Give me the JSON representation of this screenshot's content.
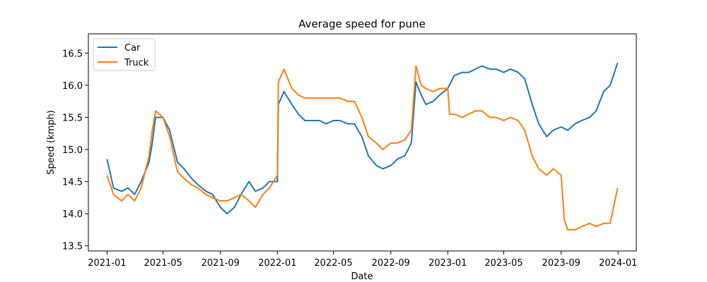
{
  "chart_data": {
    "type": "line",
    "title": "Average speed for pune",
    "xlabel": "Date",
    "ylabel": "Speed (kmph)",
    "x_ticks": [
      "2021-01",
      "2021-05",
      "2021-09",
      "2022-01",
      "2022-05",
      "2022-09",
      "2023-01",
      "2023-05",
      "2023-09",
      "2024-01"
    ],
    "y_ticks": [
      "13.5",
      "14.0",
      "14.5",
      "15.0",
      "15.5",
      "16.0",
      "16.5"
    ],
    "xlim": [
      "2020-11-22",
      "2024-02-09"
    ],
    "ylim": [
      13.42,
      16.8
    ],
    "grid": false,
    "legend_position": "top-left",
    "series": [
      {
        "name": "Car",
        "color": "#1f77b4",
        "points": [
          [
            "2021-01-01",
            14.85
          ],
          [
            "2021-01-15",
            14.4
          ],
          [
            "2021-02-01",
            14.35
          ],
          [
            "2021-02-15",
            14.4
          ],
          [
            "2021-03-01",
            14.3
          ],
          [
            "2021-03-15",
            14.5
          ],
          [
            "2021-04-01",
            14.8
          ],
          [
            "2021-04-08",
            15.1
          ],
          [
            "2021-04-15",
            15.5
          ],
          [
            "2021-05-01",
            15.5
          ],
          [
            "2021-05-15",
            15.3
          ],
          [
            "2021-06-01",
            14.8
          ],
          [
            "2021-06-15",
            14.7
          ],
          [
            "2021-07-01",
            14.55
          ],
          [
            "2021-07-15",
            14.45
          ],
          [
            "2021-08-01",
            14.35
          ],
          [
            "2021-08-15",
            14.3
          ],
          [
            "2021-09-01",
            14.1
          ],
          [
            "2021-09-15",
            14.0
          ],
          [
            "2021-10-01",
            14.1
          ],
          [
            "2021-10-15",
            14.3
          ],
          [
            "2021-11-01",
            14.5
          ],
          [
            "2021-11-15",
            14.35
          ],
          [
            "2021-12-01",
            14.4
          ],
          [
            "2021-12-15",
            14.5
          ],
          [
            "2022-01-01",
            14.5
          ],
          [
            "2022-01-03",
            15.7
          ],
          [
            "2022-01-15",
            15.9
          ],
          [
            "2022-02-01",
            15.7
          ],
          [
            "2022-02-15",
            15.55
          ],
          [
            "2022-03-01",
            15.45
          ],
          [
            "2022-03-15",
            15.45
          ],
          [
            "2022-04-01",
            15.45
          ],
          [
            "2022-04-15",
            15.4
          ],
          [
            "2022-05-01",
            15.45
          ],
          [
            "2022-05-15",
            15.45
          ],
          [
            "2022-06-01",
            15.4
          ],
          [
            "2022-06-15",
            15.4
          ],
          [
            "2022-07-01",
            15.2
          ],
          [
            "2022-07-15",
            14.9
          ],
          [
            "2022-08-01",
            14.75
          ],
          [
            "2022-08-15",
            14.7
          ],
          [
            "2022-09-01",
            14.75
          ],
          [
            "2022-09-15",
            14.85
          ],
          [
            "2022-10-01",
            14.9
          ],
          [
            "2022-10-15",
            15.1
          ],
          [
            "2022-10-25",
            16.05
          ],
          [
            "2022-11-05",
            15.85
          ],
          [
            "2022-11-15",
            15.7
          ],
          [
            "2022-12-01",
            15.75
          ],
          [
            "2022-12-15",
            15.85
          ],
          [
            "2023-01-01",
            15.95
          ],
          [
            "2023-01-15",
            16.15
          ],
          [
            "2023-02-01",
            16.2
          ],
          [
            "2023-02-15",
            16.2
          ],
          [
            "2023-03-01",
            16.25
          ],
          [
            "2023-03-15",
            16.3
          ],
          [
            "2023-04-01",
            16.25
          ],
          [
            "2023-04-15",
            16.25
          ],
          [
            "2023-05-01",
            16.2
          ],
          [
            "2023-05-15",
            16.25
          ],
          [
            "2023-06-01",
            16.2
          ],
          [
            "2023-06-15",
            16.1
          ],
          [
            "2023-07-01",
            15.7
          ],
          [
            "2023-07-15",
            15.4
          ],
          [
            "2023-08-01",
            15.2
          ],
          [
            "2023-08-15",
            15.3
          ],
          [
            "2023-09-01",
            15.35
          ],
          [
            "2023-09-15",
            15.3
          ],
          [
            "2023-10-01",
            15.4
          ],
          [
            "2023-10-15",
            15.45
          ],
          [
            "2023-11-01",
            15.5
          ],
          [
            "2023-11-15",
            15.6
          ],
          [
            "2023-12-01",
            15.9
          ],
          [
            "2023-12-15",
            16.0
          ],
          [
            "2023-12-31",
            16.35
          ]
        ]
      },
      {
        "name": "Truck",
        "color": "#ff7f0e",
        "points": [
          [
            "2021-01-01",
            14.6
          ],
          [
            "2021-01-15",
            14.3
          ],
          [
            "2021-02-01",
            14.2
          ],
          [
            "2021-02-15",
            14.3
          ],
          [
            "2021-03-01",
            14.2
          ],
          [
            "2021-03-15",
            14.4
          ],
          [
            "2021-04-01",
            14.9
          ],
          [
            "2021-04-08",
            15.3
          ],
          [
            "2021-04-15",
            15.6
          ],
          [
            "2021-05-01",
            15.5
          ],
          [
            "2021-05-15",
            15.2
          ],
          [
            "2021-06-01",
            14.65
          ],
          [
            "2021-06-15",
            14.55
          ],
          [
            "2021-07-01",
            14.45
          ],
          [
            "2021-07-15",
            14.4
          ],
          [
            "2021-08-01",
            14.3
          ],
          [
            "2021-08-15",
            14.25
          ],
          [
            "2021-09-01",
            14.2
          ],
          [
            "2021-09-15",
            14.2
          ],
          [
            "2021-10-01",
            14.25
          ],
          [
            "2021-10-15",
            14.3
          ],
          [
            "2021-11-01",
            14.2
          ],
          [
            "2021-11-15",
            14.1
          ],
          [
            "2021-12-01",
            14.3
          ],
          [
            "2021-12-15",
            14.4
          ],
          [
            "2022-01-01",
            14.6
          ],
          [
            "2022-01-03",
            16.05
          ],
          [
            "2022-01-15",
            16.25
          ],
          [
            "2022-02-01",
            15.95
          ],
          [
            "2022-02-15",
            15.85
          ],
          [
            "2022-03-01",
            15.8
          ],
          [
            "2022-03-15",
            15.8
          ],
          [
            "2022-04-01",
            15.8
          ],
          [
            "2022-04-15",
            15.8
          ],
          [
            "2022-05-01",
            15.8
          ],
          [
            "2022-05-15",
            15.8
          ],
          [
            "2022-06-01",
            15.75
          ],
          [
            "2022-06-15",
            15.75
          ],
          [
            "2022-07-01",
            15.5
          ],
          [
            "2022-07-15",
            15.2
          ],
          [
            "2022-08-01",
            15.1
          ],
          [
            "2022-08-15",
            15.0
          ],
          [
            "2022-09-01",
            15.1
          ],
          [
            "2022-09-15",
            15.1
          ],
          [
            "2022-10-01",
            15.15
          ],
          [
            "2022-10-15",
            15.3
          ],
          [
            "2022-10-25",
            16.3
          ],
          [
            "2022-11-05",
            16.0
          ],
          [
            "2022-11-15",
            15.95
          ],
          [
            "2022-12-01",
            15.9
          ],
          [
            "2022-12-15",
            15.95
          ],
          [
            "2023-01-01",
            15.95
          ],
          [
            "2023-01-05",
            15.55
          ],
          [
            "2023-01-15",
            15.55
          ],
          [
            "2023-02-01",
            15.5
          ],
          [
            "2023-02-15",
            15.55
          ],
          [
            "2023-03-01",
            15.6
          ],
          [
            "2023-03-15",
            15.6
          ],
          [
            "2023-04-01",
            15.5
          ],
          [
            "2023-04-15",
            15.5
          ],
          [
            "2023-05-01",
            15.45
          ],
          [
            "2023-05-15",
            15.5
          ],
          [
            "2023-06-01",
            15.45
          ],
          [
            "2023-06-15",
            15.3
          ],
          [
            "2023-07-01",
            14.9
          ],
          [
            "2023-07-15",
            14.7
          ],
          [
            "2023-08-01",
            14.6
          ],
          [
            "2023-08-15",
            14.7
          ],
          [
            "2023-09-01",
            14.6
          ],
          [
            "2023-09-08",
            13.9
          ],
          [
            "2023-09-15",
            13.75
          ],
          [
            "2023-10-01",
            13.75
          ],
          [
            "2023-10-15",
            13.8
          ],
          [
            "2023-11-01",
            13.85
          ],
          [
            "2023-11-15",
            13.8
          ],
          [
            "2023-12-01",
            13.85
          ],
          [
            "2023-12-15",
            13.85
          ],
          [
            "2023-12-31",
            14.4
          ]
        ]
      }
    ]
  }
}
